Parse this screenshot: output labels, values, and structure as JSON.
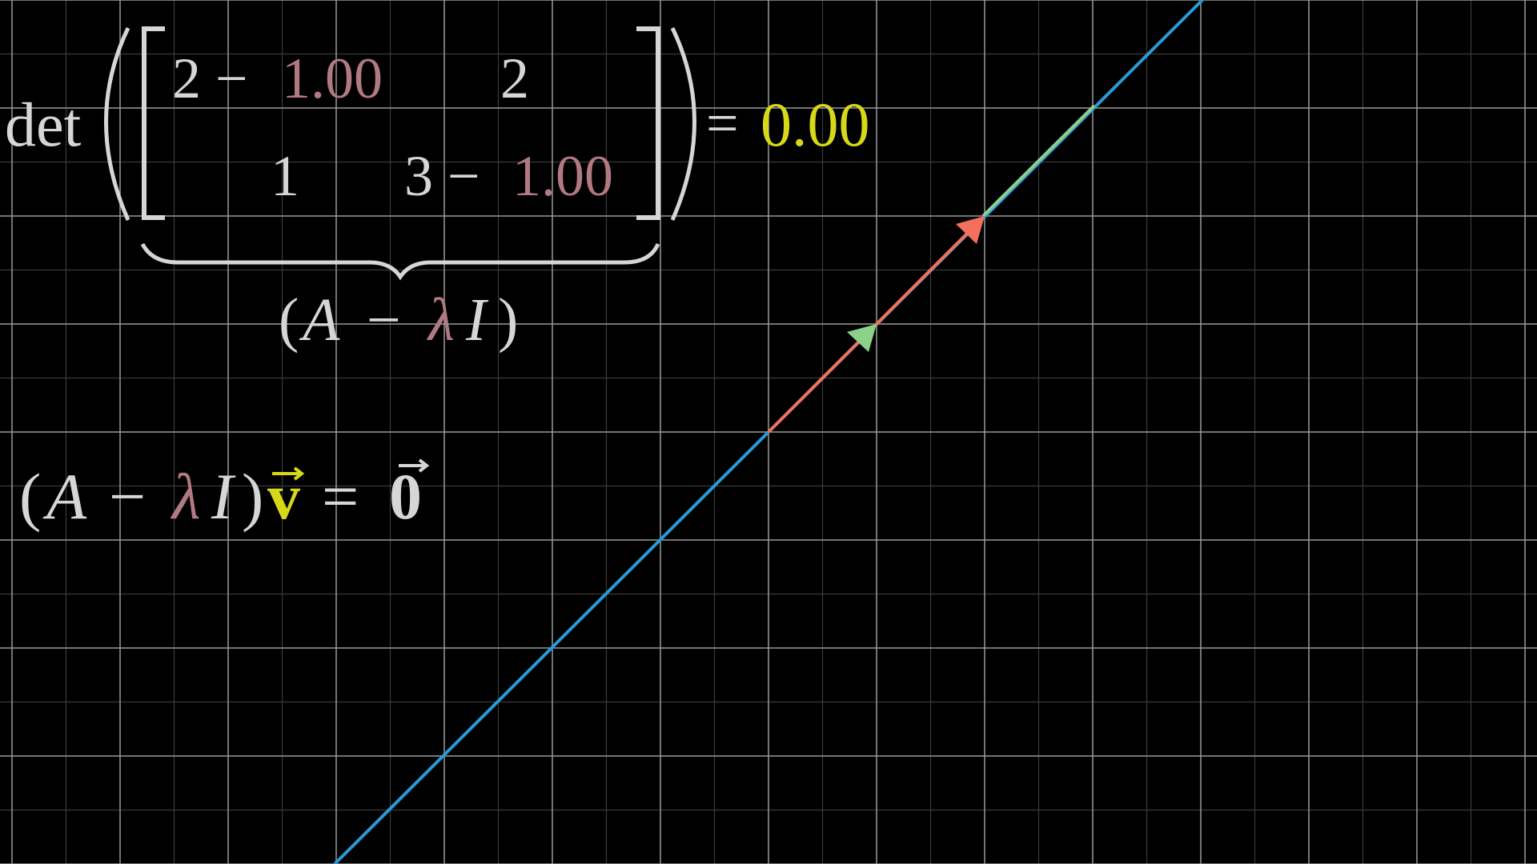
{
  "colors": {
    "background": "#000000",
    "grid_major": "#9a9a9a",
    "grid_minor": "#3a3a3a",
    "text": "#d6d6d6",
    "lambda": "#b07a82",
    "vector_v": "#d8d81a",
    "line": "#2a9ad6",
    "red_vector": "#f2705c",
    "green_vector": "#8cd08a"
  },
  "determinant": {
    "det_label": "det",
    "m11_base": "2 −",
    "m11_lambda": "1.00",
    "m12": "2",
    "m21": "1",
    "m22_base": "3 −",
    "m22_lambda": "1.00",
    "equals": "=",
    "result": "0.00"
  },
  "brace_label": {
    "open": "(",
    "A": "A",
    "minus": "−",
    "lambda": "λ",
    "I": "I",
    "close": ")"
  },
  "eigen_equation": {
    "open": "(",
    "A": "A",
    "minus": "−",
    "lambda": "λ",
    "I": "I",
    "close": ")",
    "v": "v",
    "equals": "=",
    "zero": "0"
  },
  "icons": {
    "red_vector": "arrow-head-red",
    "green_vector": "arrow-head-green",
    "vector_accent": "right-arrow-accent"
  }
}
